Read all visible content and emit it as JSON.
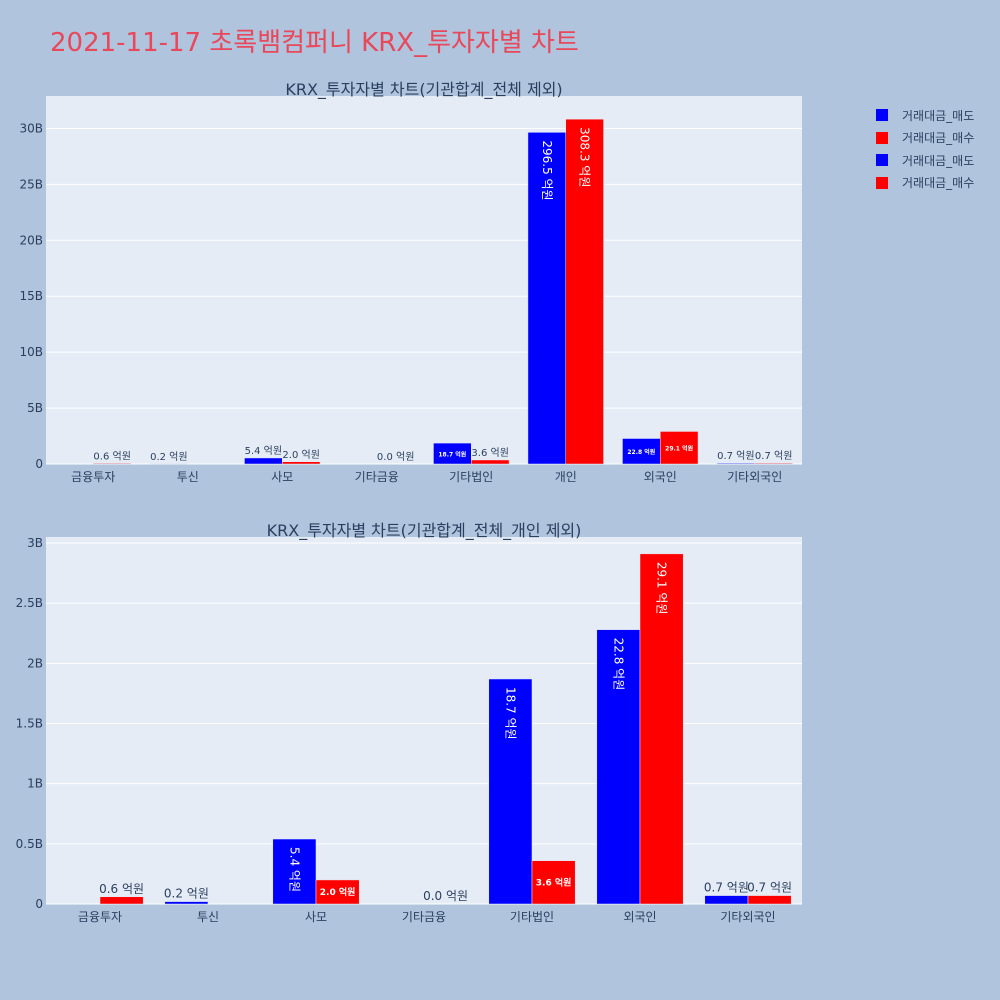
{
  "page": {
    "title": "2021-11-17 초록뱀컴퍼니 KRX_투자자별 차트"
  },
  "legend": [
    {
      "label": "거래대금_매도",
      "color": "#0000ff"
    },
    {
      "label": "거래대금_매수",
      "color": "#ff0000"
    },
    {
      "label": "거래대금_매도",
      "color": "#0000ff"
    },
    {
      "label": "거래대금_매수",
      "color": "#ff0000"
    }
  ],
  "chart_data": [
    {
      "type": "bar",
      "title": "KRX_투자자별 차트(기관합계_전체 제외)",
      "categories": [
        "금융투자",
        "투신",
        "사모",
        "기타금융",
        "기타법인",
        "개인",
        "외국인",
        "기타외국인"
      ],
      "series": [
        {
          "name": "거래대금_매도",
          "color": "#0000ff",
          "values": [
            0,
            0.02,
            0.54,
            0,
            1.87,
            29.65,
            2.28,
            0.07
          ],
          "labels": [
            "",
            "0.2 억원",
            "5.4 억원",
            "",
            "18.7 억원",
            "296.5 억원",
            "22.8 억원",
            "0.7 억원"
          ]
        },
        {
          "name": "거래대금_매수",
          "color": "#ff0000",
          "values": [
            0.06,
            0,
            0.2,
            0,
            0.36,
            30.83,
            2.91,
            0.07
          ],
          "labels": [
            "0.6 억원",
            "",
            "2.0 억원",
            "0.0 억원",
            "3.6 억원",
            "308.3 억원",
            "29.1 억원",
            "0.7 억원"
          ]
        }
      ],
      "yticks": [
        0,
        5,
        10,
        15,
        20,
        25,
        30
      ],
      "ytick_labels": [
        "0",
        "5B",
        "10B",
        "15B",
        "20B",
        "25B",
        "30B"
      ],
      "ylim": [
        0,
        32.9
      ],
      "grid": true
    },
    {
      "type": "bar",
      "title": "KRX_투자자별 차트(기관합계_전체_개인 제외)",
      "categories": [
        "금융투자",
        "투신",
        "사모",
        "기타금융",
        "기타법인",
        "외국인",
        "기타외국인"
      ],
      "series": [
        {
          "name": "거래대금_매도",
          "color": "#0000ff",
          "values": [
            0,
            0.02,
            0.54,
            0,
            1.87,
            2.28,
            0.07
          ],
          "labels": [
            "",
            "0.2 억원",
            "5.4 억원",
            "",
            "18.7 억원",
            "22.8 억원",
            "0.7 억원"
          ]
        },
        {
          "name": "거래대금_매수",
          "color": "#ff0000",
          "values": [
            0.06,
            0,
            0.2,
            0,
            0.36,
            2.91,
            0.07
          ],
          "labels": [
            "0.6 억원",
            "",
            "2.0 억원",
            "0.0 억원",
            "3.6 억원",
            "29.1 억원",
            "0.7 억원"
          ]
        }
      ],
      "yticks": [
        0,
        0.5,
        1,
        1.5,
        2,
        2.5,
        3
      ],
      "ytick_labels": [
        "0",
        "0.5B",
        "1B",
        "1.5B",
        "2B",
        "2.5B",
        "3B"
      ],
      "ylim": [
        0,
        3.05
      ],
      "grid": true
    }
  ]
}
